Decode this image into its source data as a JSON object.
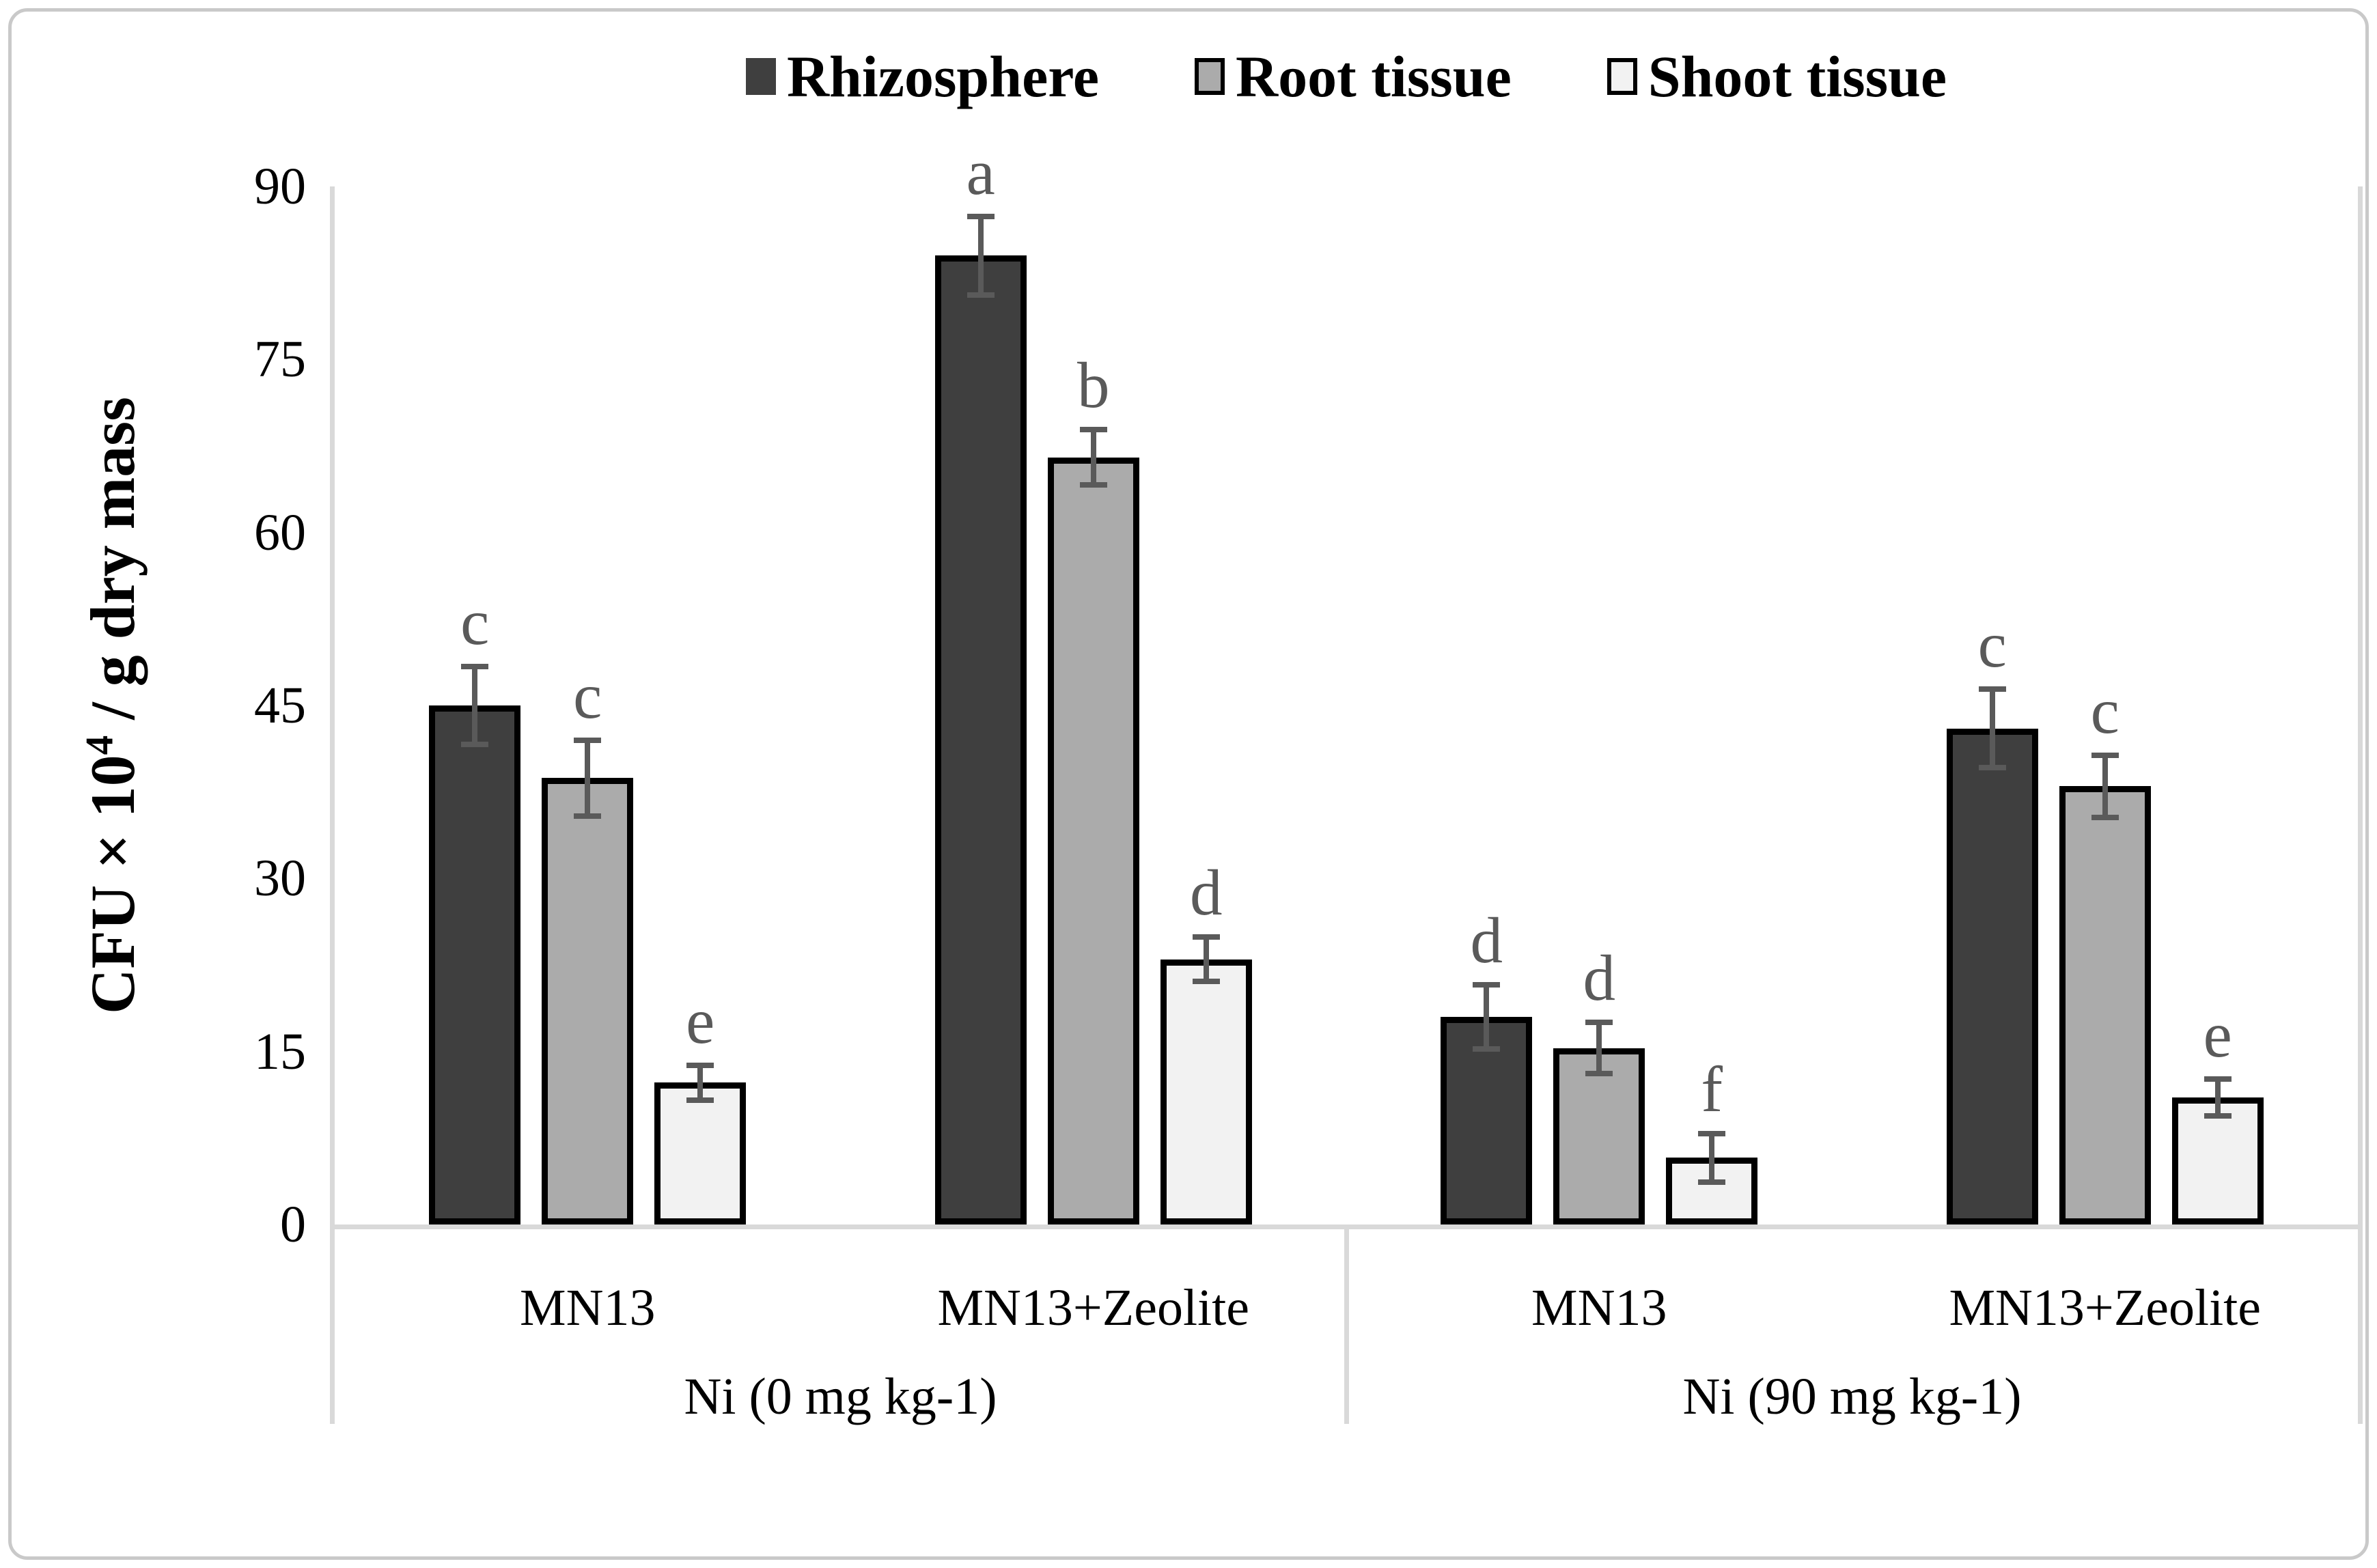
{
  "chart_data": {
    "type": "bar",
    "title": "",
    "ylabel": "CFU × 10⁴ / g dry mass",
    "ylabel_parts": {
      "prefix": "CFU × 10",
      "sup": "4",
      "suffix": " / g dry mass"
    },
    "ylim": [
      0,
      90
    ],
    "yticks": [
      "0",
      "15",
      "30",
      "45",
      "60",
      "75",
      "90"
    ],
    "categories": [
      "MN13",
      "MN13+Zeolite",
      "MN13",
      "MN13+Zeolite"
    ],
    "supergroups": [
      "Ni (0 mg kg-1)",
      "Ni (90 mg kg-1)"
    ],
    "legend_position": "top",
    "grid": false,
    "series": [
      {
        "name": "Rhizosphere",
        "color": "#3f3f3f",
        "border_color": "#000000",
        "values": [
          45,
          84,
          18,
          43
        ],
        "errors": [
          3.4,
          3.4,
          2.8,
          3.4
        ],
        "letters": [
          "c",
          "a",
          "d",
          "c"
        ]
      },
      {
        "name": "Root tissue",
        "color": "#ababab",
        "border_color": "#000000",
        "values": [
          38.7,
          66.5,
          15.3,
          38
        ],
        "errors": [
          3.3,
          2.4,
          2.2,
          2.7
        ],
        "letters": [
          "c",
          "b",
          "d",
          "c"
        ]
      },
      {
        "name": "Shoot tissue",
        "color": "#f2f2f2",
        "border_color": "#000000",
        "values": [
          12.3,
          23,
          5.8,
          11
        ],
        "errors": [
          1.5,
          1.9,
          2.1,
          1.6
        ],
        "letters": [
          "e",
          "d",
          "f",
          "e"
        ]
      }
    ],
    "error_bar_color": "#5a5a5a",
    "letter_color": "#5a5a5a",
    "axis_line_color": "#d9d9d9"
  }
}
